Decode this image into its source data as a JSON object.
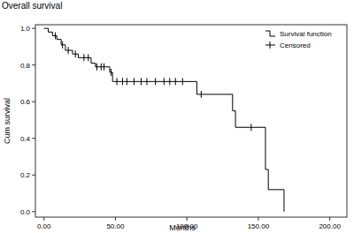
{
  "chart_data": {
    "type": "step",
    "title": "Overall survival",
    "x_label": "Months",
    "y_label": "Cum survival",
    "xlim": [
      -6,
      212
    ],
    "ylim": [
      -0.03,
      1.02
    ],
    "xticks": [
      {
        "value": 0,
        "label": "0.00"
      },
      {
        "value": 50,
        "label": "50.00"
      },
      {
        "value": 100,
        "label": "100.00"
      },
      {
        "value": 150,
        "label": "150.00"
      },
      {
        "value": 200,
        "label": "200.00"
      }
    ],
    "yticks": [
      {
        "value": 0,
        "label": "0.0"
      },
      {
        "value": 0.2,
        "label": "0.2"
      },
      {
        "value": 0.4,
        "label": "0.4"
      },
      {
        "value": 0.6,
        "label": "0.6"
      },
      {
        "value": 0.8,
        "label": "0.8"
      },
      {
        "value": 1,
        "label": "1.0"
      }
    ],
    "grid": false,
    "legend": "top-right",
    "series": [
      {
        "name": "Survival function",
        "type": "step",
        "color": "#000000",
        "line_style": "solid",
        "x": [
          0,
          3,
          6,
          9,
          12,
          15,
          20,
          24,
          33,
          36,
          46,
          48,
          107,
          132,
          134,
          155,
          157,
          168
        ],
        "values": [
          1.0,
          0.98,
          0.96,
          0.94,
          0.91,
          0.88,
          0.86,
          0.84,
          0.81,
          0.79,
          0.76,
          0.71,
          0.64,
          0.55,
          0.46,
          0.23,
          0.12,
          0.0
        ]
      },
      {
        "name": "Censored",
        "type": "scatter",
        "color": "#000000",
        "marker": "tick",
        "x": [
          8,
          13,
          17,
          22,
          28,
          31,
          37,
          40,
          42,
          47,
          51,
          55,
          58,
          63,
          68,
          72,
          78,
          84,
          88,
          92,
          97,
          110,
          145
        ],
        "values": [
          0.96,
          0.91,
          0.88,
          0.86,
          0.84,
          0.84,
          0.79,
          0.79,
          0.79,
          0.76,
          0.71,
          0.71,
          0.71,
          0.71,
          0.71,
          0.71,
          0.71,
          0.71,
          0.71,
          0.71,
          0.71,
          0.64,
          0.46
        ]
      }
    ]
  }
}
